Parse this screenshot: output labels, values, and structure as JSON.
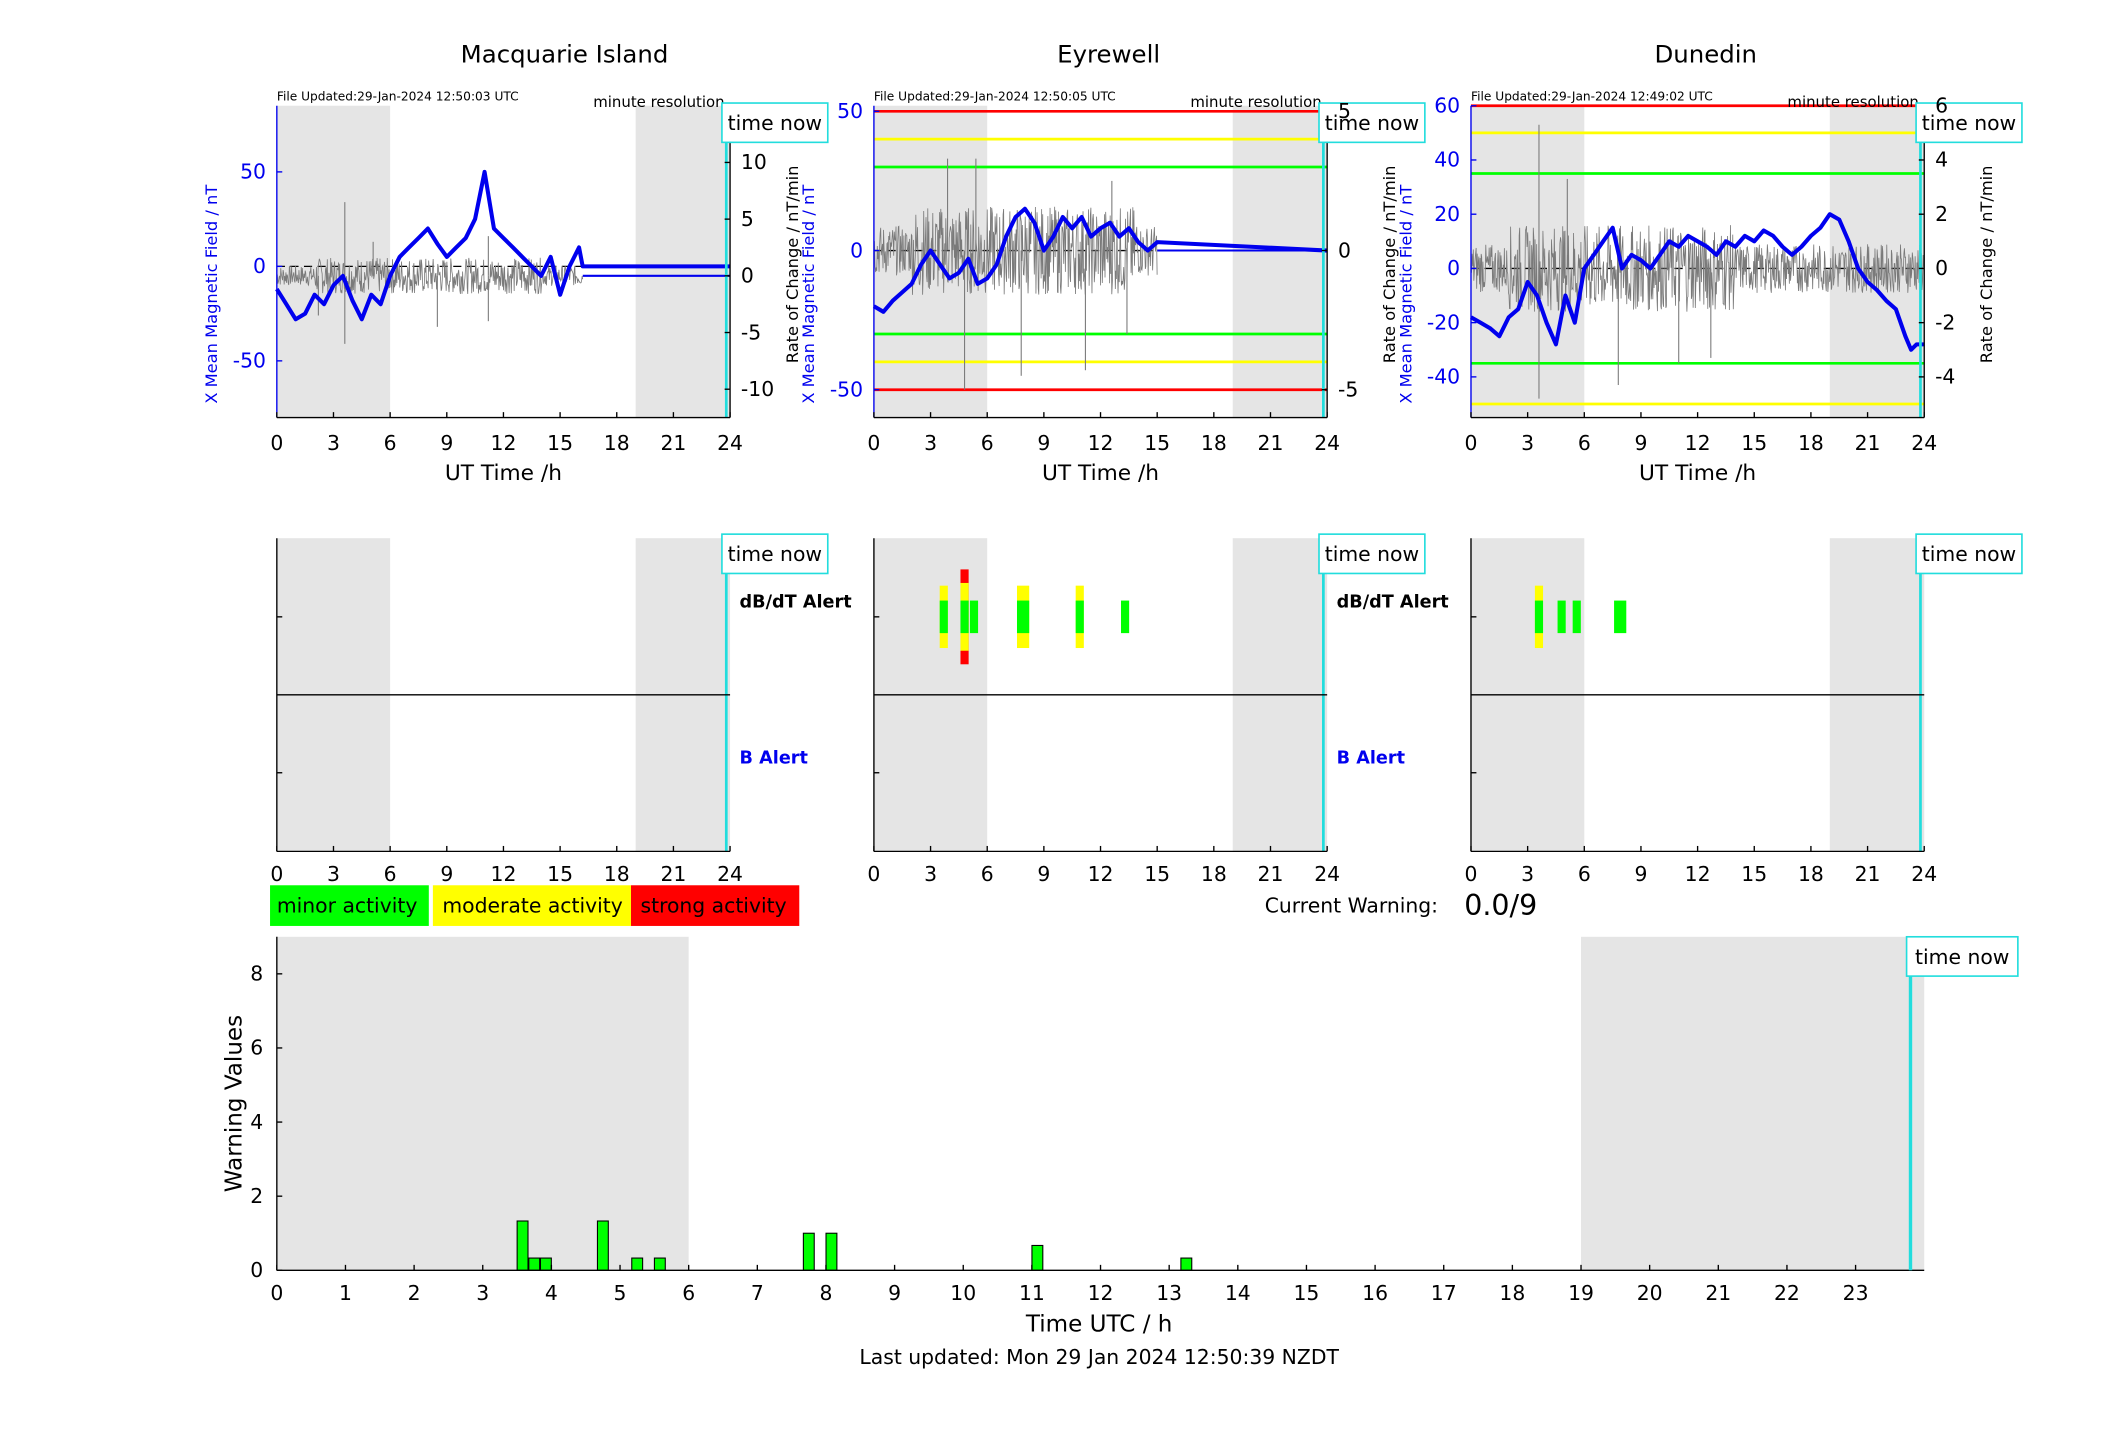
{
  "colors": {
    "shade": "#e5e5e5",
    "field": "#0000ee",
    "roc": "#7a7a7a",
    "now": "#22dddd",
    "minor": "#00ff00",
    "moderate": "#ffff00",
    "strong": "#ff0000"
  },
  "common": {
    "time_now_label": "time now",
    "ut_axis_label": "UT Time /h",
    "resolution_label": "minute resolution",
    "dbdt_alert_label": "dB/dT Alert",
    "b_alert_label": "B Alert",
    "hour_ticks": [
      0,
      3,
      6,
      9,
      12,
      15,
      18,
      21,
      24
    ],
    "shade_ranges": [
      [
        0,
        6
      ],
      [
        19,
        24
      ]
    ],
    "now_hour": 23.8
  },
  "legend": {
    "minor": "minor activity",
    "moderate": "moderate activity",
    "strong": "strong activity"
  },
  "current_warning": {
    "label": "Current Warning:",
    "value": "0.0/9"
  },
  "footer": {
    "last_updated": "Last updated: Mon 29 Jan 2024 12:50:39 NZDT"
  },
  "chart_data": [
    {
      "type": "line",
      "station": "Macquarie Island",
      "file_updated": "File Updated:29-Jan-2024 12:50:03 UTC",
      "ylabel_left": "X Mean Magnetic Field / nT",
      "ylabel_right": "Rate of Change / nT/min",
      "xlabel": "UT Time /h",
      "xlim": [
        0,
        24
      ],
      "ylim_left": [
        -80,
        85
      ],
      "ylim_right": [
        -12.5,
        15
      ],
      "yticks_left": [
        -50,
        0,
        50
      ],
      "yticks_right": [
        -10,
        -5,
        0,
        5,
        10
      ],
      "threshold_lines": [],
      "field_series": {
        "x": [
          0,
          0.5,
          1,
          1.5,
          2,
          2.5,
          3,
          3.5,
          4,
          4.5,
          5,
          5.5,
          6,
          6.5,
          7,
          7.5,
          8,
          8.5,
          9,
          9.5,
          10,
          10.5,
          11,
          11.5,
          12,
          12.5,
          13,
          13.5,
          14,
          14.5,
          15,
          15.5,
          16,
          16.2,
          24
        ],
        "y": [
          -12,
          -20,
          -28,
          -25,
          -15,
          -20,
          -10,
          -5,
          -18,
          -28,
          -15,
          -20,
          -5,
          5,
          10,
          15,
          20,
          12,
          5,
          10,
          15,
          25,
          50,
          20,
          15,
          10,
          5,
          0,
          -5,
          5,
          -15,
          0,
          10,
          0,
          0
        ]
      },
      "roc_active_until": 16.2,
      "roc_peaks": [
        {
          "x": 3.6,
          "y": 6.5
        },
        {
          "x": 3.6,
          "y": -6
        },
        {
          "x": 8.5,
          "y": -4.5
        },
        {
          "x": 11.2,
          "y": 3.5
        },
        {
          "x": 11.2,
          "y": -4
        },
        {
          "x": 5.1,
          "y": 3
        },
        {
          "x": 2.2,
          "y": -3.5
        }
      ],
      "alerts": {
        "dbdt": [],
        "b": []
      }
    },
    {
      "type": "line",
      "station": "Eyrewell",
      "file_updated": "File Updated:29-Jan-2024 12:50:05 UTC",
      "ylabel_left": "X Mean Magnetic Field / nT",
      "ylabel_right": "Rate of Change / nT/min",
      "xlabel": "UT Time /h",
      "xlim": [
        0,
        24
      ],
      "ylim_left": [
        -60,
        52
      ],
      "ylim_right": [
        -6,
        5.2
      ],
      "yticks_left": [
        -50,
        0,
        50
      ],
      "yticks_right": [
        -5,
        0,
        5
      ],
      "threshold_lines": [
        {
          "value": 50,
          "color": "red"
        },
        {
          "value": 40,
          "color": "yellow"
        },
        {
          "value": 30,
          "color": "green"
        },
        {
          "value": -30,
          "color": "green"
        },
        {
          "value": -40,
          "color": "yellow"
        },
        {
          "value": -50,
          "color": "red"
        }
      ],
      "field_series": {
        "x": [
          0,
          0.5,
          1,
          1.5,
          2,
          2.5,
          3,
          3.5,
          4,
          4.5,
          5,
          5.5,
          6,
          6.5,
          7,
          7.5,
          8,
          8.5,
          9,
          9.5,
          10,
          10.5,
          11,
          11.5,
          12,
          12.5,
          13,
          13.5,
          14,
          14.5,
          15,
          24
        ],
        "y": [
          -20,
          -22,
          -18,
          -15,
          -12,
          -5,
          0,
          -5,
          -10,
          -8,
          -3,
          -12,
          -10,
          -5,
          5,
          12,
          15,
          10,
          0,
          5,
          12,
          8,
          12,
          5,
          8,
          10,
          5,
          8,
          3,
          0,
          3,
          0
        ]
      },
      "roc_active_until": 15,
      "roc_peaks": [
        {
          "x": 3.9,
          "y": 3.3
        },
        {
          "x": 4.8,
          "y": -5
        },
        {
          "x": 5.4,
          "y": 3.3
        },
        {
          "x": 7.8,
          "y": -4.5
        },
        {
          "x": 11.2,
          "y": -4.3
        },
        {
          "x": 13.4,
          "y": -3
        },
        {
          "x": 12.6,
          "y": 2.5
        }
      ],
      "alerts": {
        "dbdt": [
          {
            "x": 3.7,
            "level": "strong_none_moderate"
          },
          {
            "x": 4.8,
            "level": "strong"
          },
          {
            "x": 5.3,
            "level": "minor"
          },
          {
            "x": 7.9,
            "level": "moderate"
          },
          {
            "x": 10.9,
            "level": "moderate"
          },
          {
            "x": 13.3,
            "level": "minor"
          }
        ],
        "b": []
      }
    },
    {
      "type": "line",
      "station": "Dunedin",
      "file_updated": "File Updated:29-Jan-2024 12:49:02 UTC",
      "ylabel_left": "X Mean Magnetic Field / nT",
      "ylabel_right": "Rate of Change / nT/min",
      "xlabel": "UT Time /h",
      "xlim": [
        0,
        24
      ],
      "ylim_left": [
        -55,
        60
      ],
      "ylim_right": [
        -5.5,
        6
      ],
      "yticks_left": [
        -40,
        -20,
        0,
        20,
        40,
        60
      ],
      "yticks_right": [
        -4,
        -2,
        0,
        2,
        4,
        6
      ],
      "threshold_lines": [
        {
          "value": 60,
          "color": "red"
        },
        {
          "value": 50,
          "color": "yellow"
        },
        {
          "value": 35,
          "color": "green"
        },
        {
          "value": -35,
          "color": "green"
        },
        {
          "value": -50,
          "color": "yellow"
        }
      ],
      "field_series": {
        "x": [
          0,
          0.5,
          1,
          1.5,
          2,
          2.5,
          3,
          3.5,
          4,
          4.5,
          5,
          5.5,
          6,
          6.5,
          7,
          7.5,
          8,
          8.5,
          9,
          9.5,
          10,
          10.5,
          11,
          11.5,
          12,
          12.5,
          13,
          13.5,
          14,
          14.5,
          15,
          15.5,
          16,
          16.5,
          17,
          17.5,
          18,
          18.5,
          19,
          19.5,
          20,
          20.5,
          21,
          21.5,
          22,
          22.5,
          23,
          23.3,
          23.6,
          24
        ],
        "y": [
          -18,
          -20,
          -22,
          -25,
          -18,
          -15,
          -5,
          -10,
          -20,
          -28,
          -10,
          -20,
          0,
          5,
          10,
          15,
          0,
          5,
          3,
          0,
          5,
          10,
          8,
          12,
          10,
          8,
          5,
          10,
          8,
          12,
          10,
          14,
          12,
          8,
          5,
          8,
          12,
          15,
          20,
          18,
          10,
          0,
          -5,
          -8,
          -12,
          -15,
          -25,
          -30,
          -28,
          -28
        ]
      },
      "roc_active_until": 24,
      "roc_peaks": [
        {
          "x": 3.6,
          "y": 5.3
        },
        {
          "x": 3.6,
          "y": -4.8
        },
        {
          "x": 5.1,
          "y": 3.3
        },
        {
          "x": 7.8,
          "y": -4.3
        },
        {
          "x": 11,
          "y": -3.5
        },
        {
          "x": 12.7,
          "y": -3.3
        }
      ],
      "alerts": {
        "dbdt": [
          {
            "x": 3.6,
            "level": "moderate"
          },
          {
            "x": 4.8,
            "level": "minor"
          },
          {
            "x": 5.6,
            "level": "minor"
          },
          {
            "x": 7.9,
            "level": "minor_wide"
          }
        ],
        "b": []
      }
    },
    {
      "type": "bar",
      "ylabel": "Warning Values",
      "xlabel": "Time UTC / h",
      "xlim": [
        0,
        24
      ],
      "ylim": [
        0,
        9
      ],
      "xticks": [
        0,
        1,
        2,
        3,
        4,
        5,
        6,
        7,
        8,
        9,
        10,
        11,
        12,
        13,
        14,
        15,
        16,
        17,
        18,
        19,
        20,
        21,
        22,
        23
      ],
      "yticks": [
        0,
        2,
        4,
        6,
        8
      ],
      "bars": [
        {
          "x": 3.58,
          "value": 1.33
        },
        {
          "x": 3.75,
          "value": 0.33
        },
        {
          "x": 3.92,
          "value": 0.33
        },
        {
          "x": 4.75,
          "value": 1.33
        },
        {
          "x": 5.25,
          "value": 0.33
        },
        {
          "x": 5.58,
          "value": 0.33
        },
        {
          "x": 7.75,
          "value": 1.0
        },
        {
          "x": 8.08,
          "value": 1.0
        },
        {
          "x": 11.08,
          "value": 0.67
        },
        {
          "x": 13.25,
          "value": 0.33
        }
      ]
    }
  ]
}
